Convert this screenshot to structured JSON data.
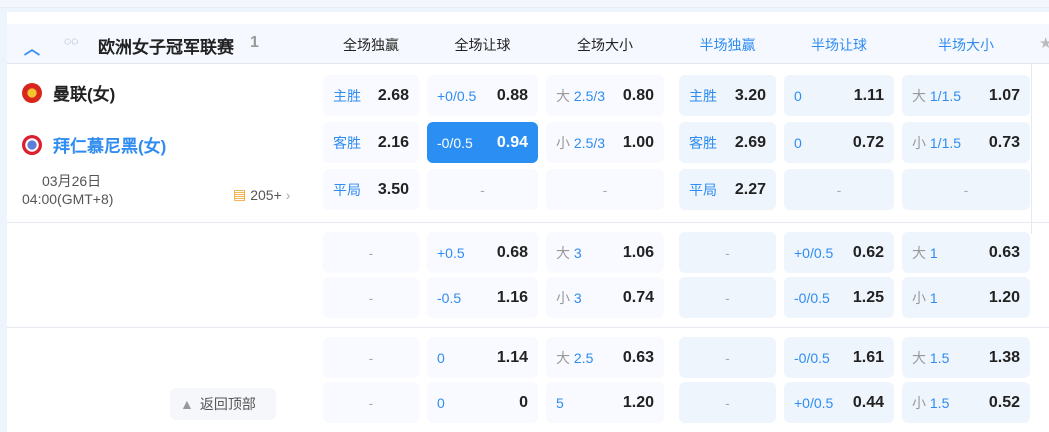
{
  "league": {
    "name": "欧洲女子冠军联赛",
    "count": "1"
  },
  "headers": [
    {
      "label": "全场独赢",
      "half": false
    },
    {
      "label": "全场让球",
      "half": false
    },
    {
      "label": "全场大小",
      "half": false
    },
    {
      "label": "半场独赢",
      "half": true
    },
    {
      "label": "半场让球",
      "half": true
    },
    {
      "label": "半场大小",
      "half": true
    }
  ],
  "match": {
    "home": "曼联(女)",
    "away": "拜仁慕尼黑(女)",
    "date": "03月26日",
    "time": "04:00(GMT+8)",
    "more": "205+"
  },
  "rows": [
    [
      {
        "p": "",
        "l": "主胜",
        "v": "2.68"
      },
      {
        "l": "+0/0.5",
        "v": "0.88"
      },
      {
        "p": "大",
        "l": "2.5/3",
        "v": "0.80"
      },
      {
        "l": "主胜",
        "v": "3.20"
      },
      {
        "l": "0",
        "v": "1.11"
      },
      {
        "p": "大",
        "l": "1/1.5",
        "v": "1.07"
      }
    ],
    [
      {
        "l": "客胜",
        "v": "2.16"
      },
      {
        "l": "-0/0.5",
        "v": "0.94",
        "sel": true
      },
      {
        "p": "小",
        "l": "2.5/3",
        "v": "1.00"
      },
      {
        "l": "客胜",
        "v": "2.69"
      },
      {
        "l": "0",
        "v": "0.72"
      },
      {
        "p": "小",
        "l": "1/1.5",
        "v": "0.73"
      }
    ],
    [
      {
        "l": "平局",
        "v": "3.50"
      },
      {
        "dash": "-"
      },
      {
        "dash": "-"
      },
      {
        "l": "平局",
        "v": "2.27"
      },
      {
        "dash": "-"
      },
      {
        "dash": "-"
      }
    ],
    [
      {
        "dash": "-"
      },
      {
        "l": "+0.5",
        "v": "0.68"
      },
      {
        "p": "大",
        "l": "3",
        "v": "1.06"
      },
      {
        "dash": "-"
      },
      {
        "l": "+0/0.5",
        "v": "0.62"
      },
      {
        "p": "大",
        "l": "1",
        "v": "0.63"
      }
    ],
    [
      {
        "dash": "-"
      },
      {
        "l": "-0.5",
        "v": "1.16"
      },
      {
        "p": "小",
        "l": "3",
        "v": "0.74"
      },
      {
        "dash": "-"
      },
      {
        "l": "-0/0.5",
        "v": "1.25"
      },
      {
        "p": "小",
        "l": "1",
        "v": "1.20"
      }
    ],
    [
      {
        "dash": "-"
      },
      {
        "l": "0",
        "v": "1.14"
      },
      {
        "p": "大",
        "l": "2.5",
        "v": "0.63"
      },
      {
        "dash": "-"
      },
      {
        "l": "-0/0.5",
        "v": "1.61"
      },
      {
        "p": "大",
        "l": "1.5",
        "v": "1.38"
      }
    ],
    [
      {
        "dash": "-"
      },
      {
        "l": "0",
        "v": "0"
      },
      {
        "p": "",
        "l": "5",
        "v": "1.20"
      },
      {
        "dash": "-"
      },
      {
        "l": "+0/0.5",
        "v": "0.44"
      },
      {
        "p": "小",
        "l": "1.5",
        "v": "0.52"
      }
    ]
  ],
  "back_to_top": "返回顶部",
  "colors": {
    "accent": "#2f8cf0",
    "selected": "#2b8ef3"
  }
}
